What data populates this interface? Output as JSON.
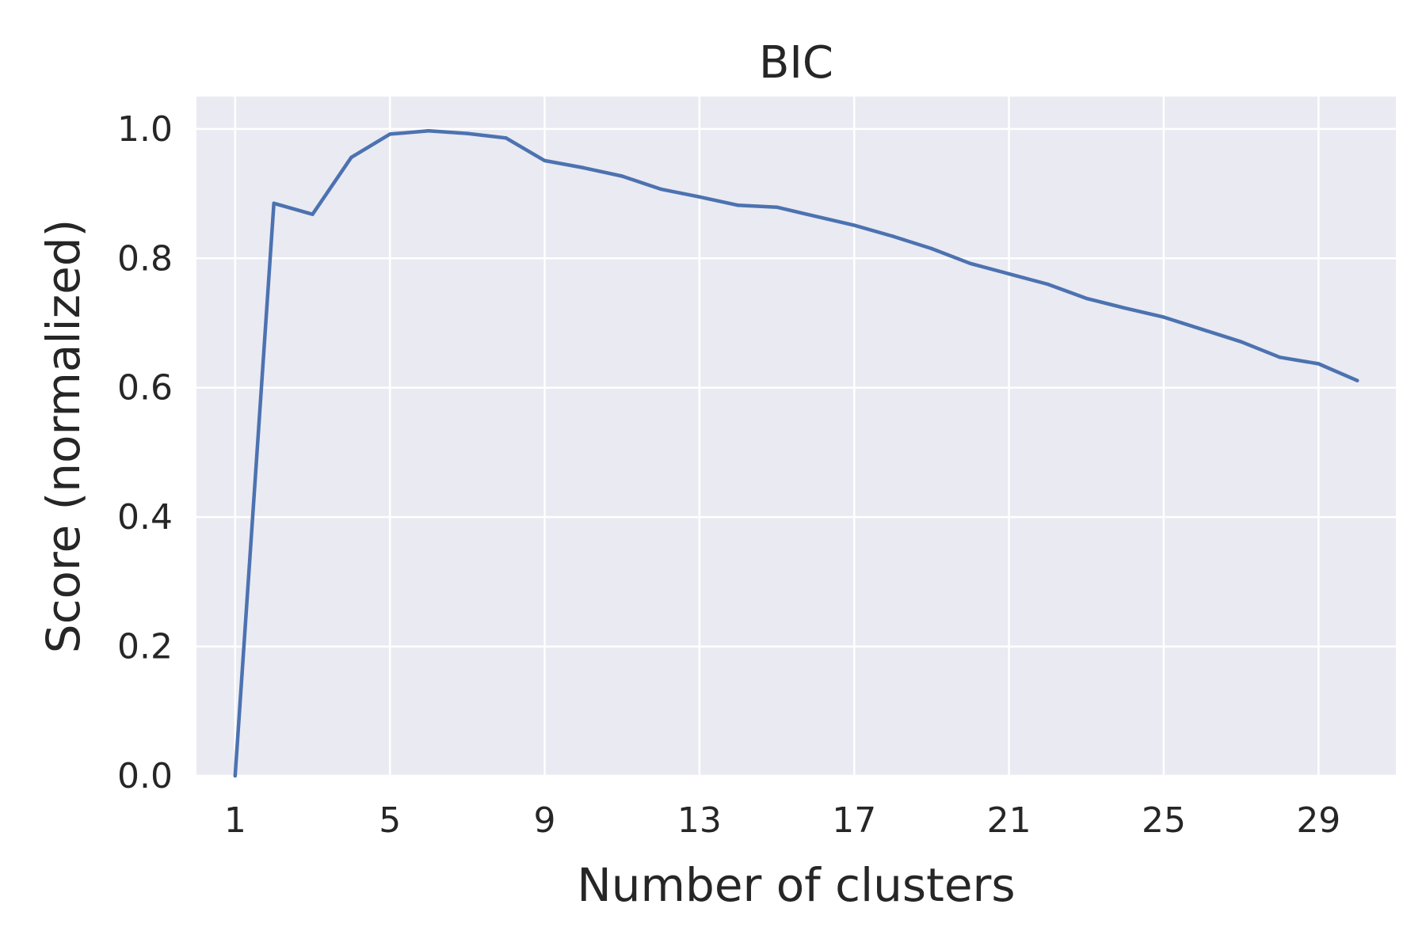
{
  "chart_data": {
    "type": "line",
    "title": "BIC",
    "xlabel": "Number of clusters",
    "ylabel": "Score (normalized)",
    "xlim": [
      0,
      31
    ],
    "ylim": [
      0,
      1.05
    ],
    "xticks": [
      1,
      5,
      9,
      13,
      17,
      21,
      25,
      29
    ],
    "yticks": [
      0.0,
      0.2,
      0.4,
      0.6,
      0.8,
      1.0
    ],
    "ytick_labels": [
      "0.0",
      "0.2",
      "0.4",
      "0.6",
      "0.8",
      "1.0"
    ],
    "grid": true,
    "colors": {
      "background": "#eaeaf2",
      "grid": "#ffffff",
      "line": "#4c72b0"
    },
    "series": [
      {
        "x": [
          1,
          2,
          3,
          4,
          5,
          6,
          7,
          8,
          9,
          10,
          11,
          12,
          13,
          14,
          15,
          16,
          17,
          18,
          19,
          20,
          21,
          22,
          23,
          24,
          25,
          26,
          27,
          28,
          29,
          30
        ],
        "values": [
          0.0,
          0.885,
          0.868,
          0.956,
          0.992,
          0.997,
          0.993,
          0.986,
          0.951,
          0.94,
          0.927,
          0.907,
          0.895,
          0.882,
          0.879,
          0.865,
          0.851,
          0.834,
          0.815,
          0.792,
          0.776,
          0.76,
          0.738,
          0.723,
          0.709,
          0.69,
          0.671,
          0.647,
          0.637,
          0.611
        ]
      }
    ]
  }
}
